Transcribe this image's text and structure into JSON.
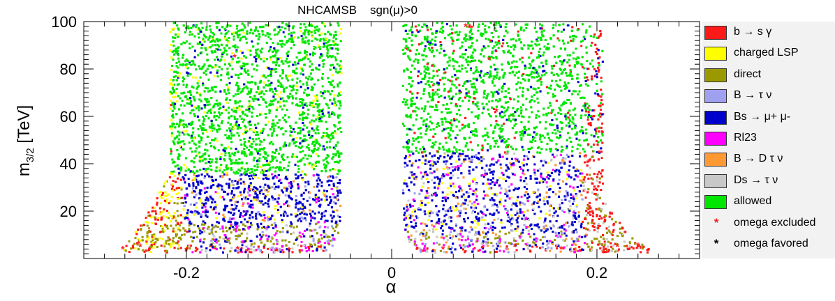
{
  "chart_data": {
    "type": "scatter",
    "title": "NHCAMSB    sgn(μ)>0",
    "xlabel": "α",
    "ylabel": "m3/2 [TeV]",
    "xlim": [
      -0.3,
      0.3
    ],
    "ylim": [
      0,
      100
    ],
    "x_ticks": [
      -0.2,
      0,
      0.2
    ],
    "x_tick_labels": [
      "-0.2",
      "0",
      "0.2"
    ],
    "y_ticks": [
      20,
      40,
      60,
      80,
      100
    ],
    "y_tick_labels": [
      "20",
      "40",
      "60",
      "80",
      "100"
    ],
    "grid": false,
    "legend_placement": "right",
    "colors": {
      "b_to_s_gamma": "#ff1a1a",
      "charged_lsp": "#ffff00",
      "direct": "#9a9a00",
      "b_to_tau_nu": "#a0a0f0",
      "bs_to_mumu": "#0000cc",
      "rl23": "#ff00ff",
      "b_to_d_tau_nu": "#ff9933",
      "ds_to_tau_nu": "#c8c8c8",
      "allowed": "#00e600",
      "omega_excluded": "#ff1a1a",
      "omega_favored": "#000000"
    },
    "regions": {
      "left_lobe": {
        "alpha_range": [
          -0.265,
          -0.05
        ],
        "m32_range": [
          3,
          100
        ]
      },
      "right_lobe": {
        "alpha_range": [
          0.01,
          0.25
        ],
        "m32_range": [
          3,
          100
        ]
      },
      "allowed_left": {
        "alpha_range": [
          -0.22,
          -0.05
        ],
        "m32_range": [
          35,
          100
        ]
      },
      "allowed_right": {
        "alpha_range": [
          0.01,
          0.2
        ],
        "m32_range": [
          45,
          100
        ]
      },
      "bs_mumu_left": {
        "alpha_range": [
          -0.21,
          -0.05
        ],
        "m32_range": [
          10,
          36
        ]
      },
      "bs_mumu_right": {
        "alpha_range": [
          0.01,
          0.185
        ],
        "m32_range": [
          8,
          48
        ]
      }
    },
    "omega_excluded_points": [
      {
        "x": -0.153,
        "y": 85
      },
      {
        "x": 0.072,
        "y": 98
      },
      {
        "x": 0.095,
        "y": 84
      },
      {
        "x": 0.102,
        "y": 62
      },
      {
        "x": 0.206,
        "y": 2.5
      },
      {
        "x": -0.262,
        "y": 4
      },
      {
        "x": -0.245,
        "y": 5
      },
      {
        "x": -0.2,
        "y": 3.5
      },
      {
        "x": -0.15,
        "y": 4
      },
      {
        "x": -0.1,
        "y": 3.5
      },
      {
        "x": 0.05,
        "y": 4
      },
      {
        "x": 0.12,
        "y": 5
      },
      {
        "x": 0.165,
        "y": 4
      },
      {
        "x": 0.22,
        "y": 5
      },
      {
        "x": 0.24,
        "y": 5.5
      }
    ],
    "legend": [
      {
        "label": "b → s γ",
        "kind": "box",
        "color_key": "b_to_s_gamma"
      },
      {
        "label": "charged LSP",
        "kind": "box",
        "color_key": "charged_lsp"
      },
      {
        "label": "direct",
        "kind": "box",
        "color_key": "direct"
      },
      {
        "label": "B → τ ν",
        "kind": "box",
        "color_key": "b_to_tau_nu"
      },
      {
        "label": "Bs → μ+ μ-",
        "kind": "box",
        "color_key": "bs_to_mumu"
      },
      {
        "label": "Rl23",
        "kind": "box",
        "color_key": "rl23"
      },
      {
        "label": "B → D τ ν",
        "kind": "box",
        "color_key": "b_to_d_tau_nu"
      },
      {
        "label": "Ds → τ ν",
        "kind": "box",
        "color_key": "ds_to_tau_nu"
      },
      {
        "label": "allowed",
        "kind": "box",
        "color_key": "allowed"
      },
      {
        "label": "omega excluded",
        "kind": "marker",
        "color_key": "omega_excluded"
      },
      {
        "label": "omega favored",
        "kind": "marker",
        "color_key": "omega_favored"
      }
    ]
  }
}
